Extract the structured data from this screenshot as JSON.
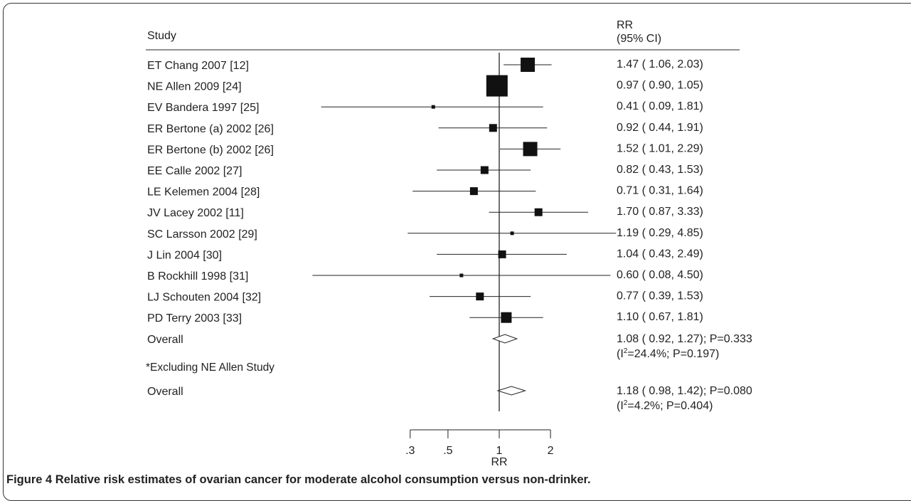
{
  "chart_data": {
    "type": "forest",
    "column_headers": {
      "study": "Study",
      "estimate_line1": "RR",
      "estimate_line2": "(95% CI)"
    },
    "xlabel": "RR",
    "x_scale": "log",
    "x_ticks": [
      {
        "value": 0.3,
        "label": ".3"
      },
      {
        "value": 0.5,
        "label": ".5"
      },
      {
        "value": 1,
        "label": "1"
      },
      {
        "value": 2,
        "label": "2"
      }
    ],
    "null_value": 1,
    "studies": [
      {
        "label": "ET Chang 2007 [12]",
        "rr": 1.47,
        "lo": 1.06,
        "hi": 2.03,
        "text": "1.47 ( 1.06, 2.03)",
        "weight": "large"
      },
      {
        "label": "NE Allen 2009 [24]",
        "rr": 0.97,
        "lo": 0.9,
        "hi": 1.05,
        "text": "0.97 ( 0.90, 1.05)",
        "weight": "largest"
      },
      {
        "label": "EV Bandera 1997 [25]",
        "rr": 0.41,
        "lo": 0.09,
        "hi": 1.81,
        "text": "0.41 ( 0.09, 1.81)",
        "weight": "tiny"
      },
      {
        "label": "ER Bertone (a) 2002 [26]",
        "rr": 0.92,
        "lo": 0.44,
        "hi": 1.91,
        "text": "0.92 ( 0.44, 1.91)",
        "weight": "small"
      },
      {
        "label": "ER Bertone (b) 2002 [26]",
        "rr": 1.52,
        "lo": 1.01,
        "hi": 2.29,
        "text": "1.52 ( 1.01, 2.29)",
        "weight": "large"
      },
      {
        "label": "EE Calle 2002 [27]",
        "rr": 0.82,
        "lo": 0.43,
        "hi": 1.53,
        "text": "0.82 ( 0.43, 1.53)",
        "weight": "small"
      },
      {
        "label": "LE Kelemen 2004 [28]",
        "rr": 0.71,
        "lo": 0.31,
        "hi": 1.64,
        "text": "0.71 ( 0.31, 1.64)",
        "weight": "small"
      },
      {
        "label": "JV Lacey 2002 [11]",
        "rr": 1.7,
        "lo": 0.87,
        "hi": 3.33,
        "text": "1.70 ( 0.87, 3.33)",
        "weight": "small"
      },
      {
        "label": "SC Larsson 2002 [29]",
        "rr": 1.19,
        "lo": 0.29,
        "hi": 4.85,
        "text": "1.19 ( 0.29, 4.85)",
        "weight": "tiny"
      },
      {
        "label": "J Lin 2004 [30]",
        "rr": 1.04,
        "lo": 0.43,
        "hi": 2.49,
        "text": "1.04 ( 0.43, 2.49)",
        "weight": "small"
      },
      {
        "label": "B Rockhill 1998 [31]",
        "rr": 0.6,
        "lo": 0.08,
        "hi": 4.5,
        "text": "0.60 ( 0.08, 4.50)",
        "weight": "tiny"
      },
      {
        "label": "LJ Schouten 2004 [32]",
        "rr": 0.77,
        "lo": 0.39,
        "hi": 1.53,
        "text": "0.77 ( 0.39, 1.53)",
        "weight": "small"
      },
      {
        "label": "PD Terry 2003 [33]",
        "rr": 1.1,
        "lo": 0.67,
        "hi": 1.81,
        "text": "1.10 ( 0.67, 1.81)",
        "weight": "medium"
      }
    ],
    "overall": [
      {
        "label": "Overall",
        "rr": 1.08,
        "lo": 0.92,
        "hi": 1.27,
        "text": "1.08 ( 0.92, 1.27); P=0.333",
        "het_prefix": "(I",
        "het_sup": "2",
        "het_suffix": "=24.4%; P=0.197)"
      },
      {
        "note": "*Excluding NE Allen Study",
        "label": "Overall",
        "rr": 1.18,
        "lo": 0.98,
        "hi": 1.42,
        "text": "1.18 ( 0.98, 1.42); P=0.080",
        "het_prefix": "(I",
        "het_sup": "2",
        "het_suffix": "=4.2%; P=0.404)"
      }
    ]
  },
  "caption": {
    "label": "Figure 4",
    "text": "Relative risk estimates of ovarian cancer for moderate alcohol consumption versus non-drinker."
  }
}
